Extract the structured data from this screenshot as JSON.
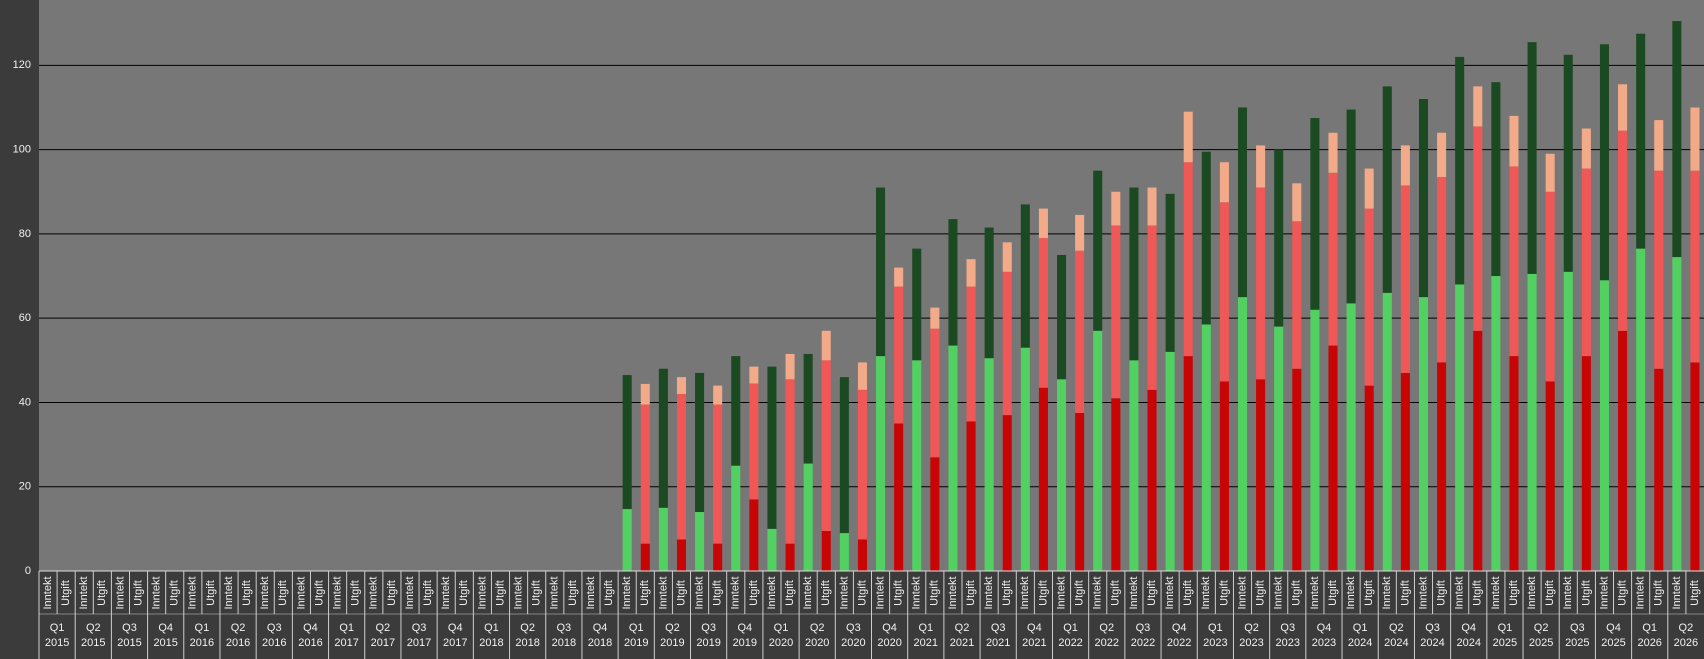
{
  "chart_data": {
    "type": "stacked-grouped-bar",
    "categories": [
      {
        "quarter": "Q1",
        "year": "2015"
      },
      {
        "quarter": "Q2",
        "year": "2015"
      },
      {
        "quarter": "Q3",
        "year": "2015"
      },
      {
        "quarter": "Q4",
        "year": "2015"
      },
      {
        "quarter": "Q1",
        "year": "2016"
      },
      {
        "quarter": "Q2",
        "year": "2016"
      },
      {
        "quarter": "Q3",
        "year": "2016"
      },
      {
        "quarter": "Q4",
        "year": "2016"
      },
      {
        "quarter": "Q1",
        "year": "2017"
      },
      {
        "quarter": "Q2",
        "year": "2017"
      },
      {
        "quarter": "Q3",
        "year": "2017"
      },
      {
        "quarter": "Q4",
        "year": "2017"
      },
      {
        "quarter": "Q1",
        "year": "2018"
      },
      {
        "quarter": "Q2",
        "year": "2018"
      },
      {
        "quarter": "Q3",
        "year": "2018"
      },
      {
        "quarter": "Q4",
        "year": "2018"
      },
      {
        "quarter": "Q1",
        "year": "2019"
      },
      {
        "quarter": "Q2",
        "year": "2019"
      },
      {
        "quarter": "Q3",
        "year": "2019"
      },
      {
        "quarter": "Q4",
        "year": "2019"
      },
      {
        "quarter": "Q1",
        "year": "2020"
      },
      {
        "quarter": "Q2",
        "year": "2020"
      },
      {
        "quarter": "Q3",
        "year": "2020"
      },
      {
        "quarter": "Q4",
        "year": "2020"
      },
      {
        "quarter": "Q1",
        "year": "2021"
      },
      {
        "quarter": "Q2",
        "year": "2021"
      },
      {
        "quarter": "Q3",
        "year": "2021"
      },
      {
        "quarter": "Q4",
        "year": "2021"
      },
      {
        "quarter": "Q1",
        "year": "2022"
      },
      {
        "quarter": "Q2",
        "year": "2022"
      },
      {
        "quarter": "Q3",
        "year": "2022"
      },
      {
        "quarter": "Q4",
        "year": "2022"
      },
      {
        "quarter": "Q1",
        "year": "2023"
      },
      {
        "quarter": "Q2",
        "year": "2023"
      },
      {
        "quarter": "Q3",
        "year": "2023"
      },
      {
        "quarter": "Q4",
        "year": "2023"
      },
      {
        "quarter": "Q1",
        "year": "2024"
      },
      {
        "quarter": "Q2",
        "year": "2024"
      },
      {
        "quarter": "Q3",
        "year": "2024"
      },
      {
        "quarter": "Q4",
        "year": "2024"
      },
      {
        "quarter": "Q1",
        "year": "2025"
      },
      {
        "quarter": "Q2",
        "year": "2025"
      },
      {
        "quarter": "Q3",
        "year": "2025"
      },
      {
        "quarter": "Q4",
        "year": "2025"
      },
      {
        "quarter": "Q1",
        "year": "2026"
      },
      {
        "quarter": "Q2",
        "year": "2026"
      }
    ],
    "subcategories": [
      "Inntekt",
      "Utgift"
    ],
    "series": [
      {
        "stack": 0,
        "color": "#52d062",
        "values": [
          null,
          null,
          null,
          null,
          null,
          null,
          null,
          null,
          null,
          null,
          null,
          null,
          null,
          null,
          null,
          null,
          14.7,
          15,
          14,
          25,
          10,
          25.5,
          9,
          51,
          50,
          53.5,
          50.5,
          53,
          45.5,
          57,
          50,
          52,
          58.5,
          65,
          58,
          62,
          63.5,
          66,
          65,
          68,
          70,
          70.5,
          71,
          69,
          76.5,
          74.5
        ]
      },
      {
        "stack": 0,
        "color": "#1b4a22",
        "values": [
          null,
          null,
          null,
          null,
          null,
          null,
          null,
          null,
          null,
          null,
          null,
          null,
          null,
          null,
          null,
          null,
          31.8,
          33,
          33,
          26,
          38.5,
          26,
          37,
          40,
          26.5,
          30,
          31,
          34,
          29.5,
          38,
          41,
          37.5,
          41,
          45,
          42,
          45.5,
          46,
          49,
          47,
          54,
          46,
          55,
          51.5,
          56,
          51,
          56
        ]
      },
      {
        "stack": 1,
        "color": "#c80404",
        "values": [
          null,
          null,
          null,
          null,
          null,
          null,
          null,
          null,
          null,
          null,
          null,
          null,
          null,
          null,
          null,
          null,
          6.5,
          7.5,
          6.5,
          17,
          6.5,
          9.5,
          7.5,
          35,
          27,
          35.5,
          37,
          43.5,
          37.5,
          41,
          43,
          51,
          45,
          45.5,
          48,
          53.5,
          44,
          47,
          49.5,
          57,
          51,
          45,
          51,
          57,
          48,
          49.5
        ]
      },
      {
        "stack": 1,
        "color": "#f05757",
        "values": [
          null,
          null,
          null,
          null,
          null,
          null,
          null,
          null,
          null,
          null,
          null,
          null,
          null,
          null,
          null,
          null,
          33,
          34.5,
          33,
          27.5,
          39,
          40.5,
          35.5,
          32.5,
          30.5,
          32,
          34,
          35.5,
          38.5,
          41,
          39,
          46,
          42.5,
          45.5,
          35,
          41,
          42,
          44.5,
          44,
          48.5,
          45,
          45,
          44.5,
          47.5,
          47,
          45.5
        ]
      },
      {
        "stack": 1,
        "color": "#f2aa88",
        "values": [
          null,
          null,
          null,
          null,
          null,
          null,
          null,
          null,
          null,
          null,
          null,
          null,
          null,
          null,
          null,
          null,
          4.9,
          4,
          4.5,
          4,
          6,
          7,
          6.5,
          4.5,
          5,
          6.5,
          7,
          7,
          8.5,
          8,
          9,
          12,
          9.5,
          10,
          9,
          9.5,
          9.5,
          9.5,
          10.5,
          9.5,
          12,
          9,
          9.5,
          11,
          12,
          15
        ]
      }
    ],
    "ylim": [
      0,
      135.5
    ],
    "yticks": [
      0,
      20,
      40,
      60,
      80,
      100,
      120
    ],
    "grid": true
  }
}
